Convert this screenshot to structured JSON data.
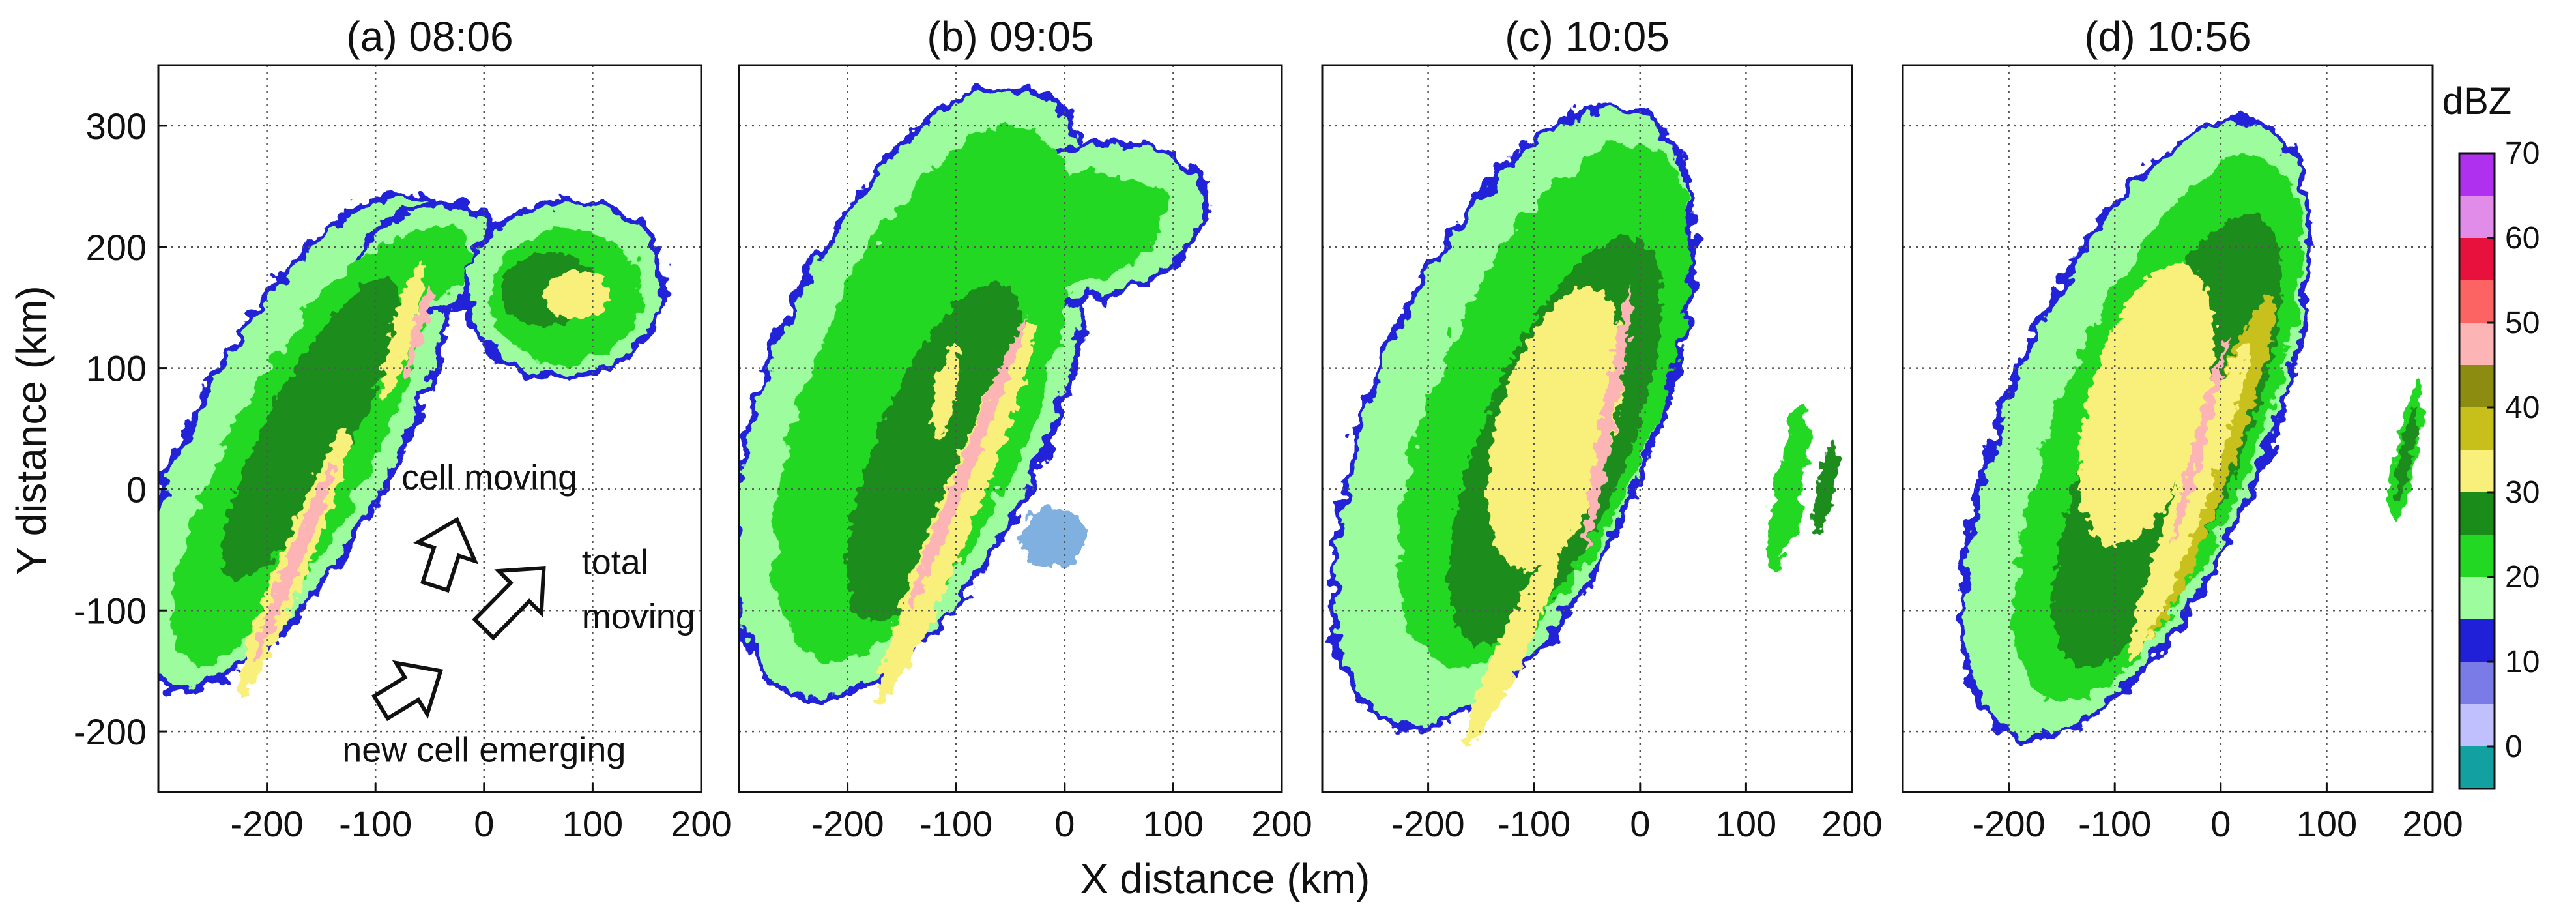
{
  "chart_data": [
    {
      "type": "heatmap",
      "title": "(a) 08:06",
      "xlabel": "X distance (km)",
      "ylabel": "Y distance (km)",
      "xlim": [
        -300,
        200
      ],
      "ylim": [
        -250,
        350
      ],
      "xticks": [
        -200,
        -100,
        0,
        100,
        200
      ],
      "yticks": [
        -200,
        -100,
        0,
        100,
        200,
        300
      ],
      "grid": true,
      "annotations": [
        {
          "text": "cell moving",
          "x": 5,
          "y": 0
        },
        {
          "text": "total",
          "x": 90,
          "y": -70
        },
        {
          "text": "moving",
          "x": 90,
          "y": -115
        },
        {
          "text": "new cell emerging",
          "x": 0,
          "y": -225
        }
      ],
      "arrows": [
        {
          "name": "cell moving",
          "from": [
            -45,
            -80
          ],
          "to": [
            -25,
            -25
          ]
        },
        {
          "name": "total moving",
          "from": [
            0,
            -115
          ],
          "to": [
            55,
            -65
          ]
        },
        {
          "name": "new cell emerging",
          "from": [
            -95,
            -180
          ],
          "to": [
            -40,
            -150
          ]
        }
      ]
    },
    {
      "type": "heatmap",
      "title": "(b) 09:05",
      "xlim": [
        -300,
        200
      ],
      "ylim": [
        -250,
        350
      ],
      "xticks": [
        -200,
        -100,
        0,
        100,
        200
      ],
      "grid": true
    },
    {
      "type": "heatmap",
      "title": "(c) 10:05",
      "xlim": [
        -300,
        200
      ],
      "ylim": [
        -250,
        350
      ],
      "xticks": [
        -200,
        -100,
        0,
        100,
        200
      ],
      "grid": true
    },
    {
      "type": "heatmap",
      "title": "(d) 10:56",
      "xlim": [
        -300,
        200
      ],
      "ylim": [
        -250,
        350
      ],
      "xticks": [
        -200,
        -100,
        0,
        100,
        200
      ],
      "grid": true
    }
  ],
  "colorbar": {
    "title": "dBZ",
    "min": -5,
    "max": 70,
    "ticks": [
      "70",
      "60",
      "50",
      "40",
      "30",
      "20",
      "10",
      "0"
    ],
    "tick_values": [
      70,
      60,
      50,
      40,
      30,
      20,
      10,
      0
    ],
    "colors": [
      "#12a0a0",
      "#c0c0ff",
      "#7b7be8",
      "#2020d8",
      "#9dfc9d",
      "#22d822",
      "#1a8c1a",
      "#f8f07a",
      "#c8c01a",
      "#8c8c10",
      "#fcb4b4",
      "#fc6464",
      "#e8103c",
      "#e08ce8",
      "#b030f0"
    ]
  },
  "colors": {
    "weak_echo_blue": "#2020d8",
    "light_green": "#9dfc9d",
    "green": "#22d822",
    "dark_green": "#1a8c1a",
    "yellow": "#f8f07a",
    "olive": "#c8c01a",
    "pink": "#fcb4b4",
    "light_blue": "#7fb0e0"
  }
}
